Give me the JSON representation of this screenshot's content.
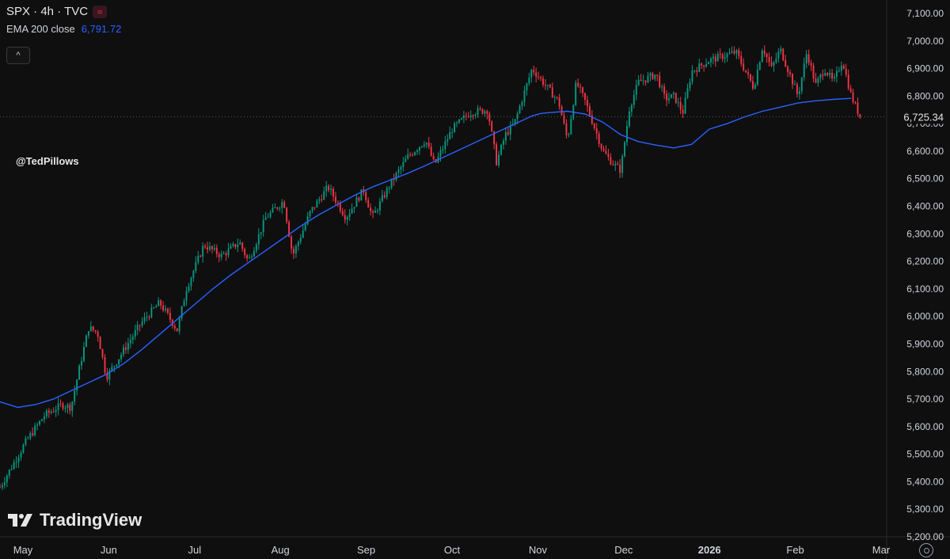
{
  "header": {
    "symbol_line": "SPX · 4h · TVC",
    "badge_symbol": "≈",
    "indicator_label": "EMA 200 close",
    "indicator_value": "6,791.72",
    "collapse_symbol": "^"
  },
  "watermark_handle": "@TedPillows",
  "brand": {
    "name": "TradingView",
    "logo_icon": "tradingview-logo-icon"
  },
  "colors": {
    "up": "#089981",
    "down": "#f23645",
    "ema": "#2962ff",
    "background": "#0f0f0f"
  },
  "chart_data": {
    "type": "candlestick",
    "symbol": "SPX",
    "timeframe": "4h",
    "source": "TVC",
    "y_axis": {
      "ticks": [
        "7,100.00",
        "7,000.00",
        "6,900.00",
        "6,800.00",
        "6,700.00",
        "6,600.00",
        "6,500.00",
        "6,400.00",
        "6,300.00",
        "6,200.00",
        "6,100.00",
        "6,000.00",
        "5,900.00",
        "5,800.00",
        "5,700.00",
        "5,600.00",
        "5,500.00",
        "5,400.00",
        "5,300.00",
        "5,200.00"
      ],
      "range": [
        5200,
        7100
      ]
    },
    "x_axis": {
      "ticks": [
        "May",
        "Jun",
        "Jul",
        "Aug",
        "Sep",
        "Oct",
        "Nov",
        "Dec",
        "2026",
        "Feb",
        "Mar"
      ]
    },
    "current_price": 6725.34,
    "current_price_label": "6,725.34",
    "price_path": [
      [
        0,
        5380
      ],
      [
        3,
        5550
      ],
      [
        5,
        5640
      ],
      [
        7,
        5680
      ],
      [
        8,
        5670
      ],
      [
        9,
        5820
      ],
      [
        10,
        5960
      ],
      [
        11,
        5940
      ],
      [
        12,
        5780
      ],
      [
        14,
        5880
      ],
      [
        16,
        5980
      ],
      [
        18,
        6050
      ],
      [
        20,
        5950
      ],
      [
        21,
        6100
      ],
      [
        23,
        6260
      ],
      [
        25,
        6220
      ],
      [
        27,
        6270
      ],
      [
        28,
        6200
      ],
      [
        30,
        6360
      ],
      [
        32,
        6420
      ],
      [
        33,
        6220
      ],
      [
        35,
        6380
      ],
      [
        37,
        6470
      ],
      [
        39,
        6360
      ],
      [
        41,
        6460
      ],
      [
        42,
        6360
      ],
      [
        44,
        6480
      ],
      [
        46,
        6580
      ],
      [
        48,
        6640
      ],
      [
        49,
        6550
      ],
      [
        51,
        6680
      ],
      [
        53,
        6740
      ],
      [
        55,
        6750
      ],
      [
        56,
        6560
      ],
      [
        57,
        6660
      ],
      [
        58,
        6700
      ],
      [
        60,
        6900
      ],
      [
        61,
        6860
      ],
      [
        63,
        6780
      ],
      [
        64,
        6640
      ],
      [
        65,
        6850
      ],
      [
        66,
        6780
      ],
      [
        68,
        6600
      ],
      [
        69,
        6560
      ],
      [
        70,
        6530
      ],
      [
        71,
        6760
      ],
      [
        72,
        6850
      ],
      [
        74,
        6880
      ],
      [
        75,
        6790
      ],
      [
        76,
        6800
      ],
      [
        77,
        6740
      ],
      [
        78,
        6890
      ],
      [
        80,
        6930
      ],
      [
        82,
        6950
      ],
      [
        83,
        6960
      ],
      [
        85,
        6830
      ],
      [
        86,
        6980
      ],
      [
        87,
        6900
      ],
      [
        88,
        6970
      ],
      [
        90,
        6800
      ],
      [
        91,
        6960
      ],
      [
        92,
        6840
      ],
      [
        93,
        6900
      ],
      [
        94,
        6850
      ],
      [
        95,
        6930
      ],
      [
        96,
        6800
      ],
      [
        97,
        6725
      ]
    ],
    "ema200": [
      [
        0,
        5690
      ],
      [
        2,
        5670
      ],
      [
        4,
        5680
      ],
      [
        6,
        5700
      ],
      [
        8,
        5730
      ],
      [
        10,
        5760
      ],
      [
        12,
        5790
      ],
      [
        14,
        5830
      ],
      [
        16,
        5880
      ],
      [
        18,
        5935
      ],
      [
        20,
        5990
      ],
      [
        22,
        6045
      ],
      [
        24,
        6100
      ],
      [
        26,
        6150
      ],
      [
        28,
        6195
      ],
      [
        30,
        6240
      ],
      [
        32,
        6285
      ],
      [
        34,
        6330
      ],
      [
        36,
        6370
      ],
      [
        38,
        6405
      ],
      [
        40,
        6440
      ],
      [
        42,
        6470
      ],
      [
        44,
        6495
      ],
      [
        46,
        6520
      ],
      [
        48,
        6548
      ],
      [
        50,
        6578
      ],
      [
        52,
        6608
      ],
      [
        54,
        6638
      ],
      [
        56,
        6668
      ],
      [
        58,
        6698
      ],
      [
        60,
        6728
      ],
      [
        61,
        6737
      ],
      [
        62,
        6740
      ],
      [
        64,
        6745
      ],
      [
        66,
        6735
      ],
      [
        68,
        6705
      ],
      [
        70,
        6660
      ],
      [
        72,
        6635
      ],
      [
        74,
        6622
      ],
      [
        76,
        6612
      ],
      [
        78,
        6625
      ],
      [
        80,
        6680
      ],
      [
        82,
        6700
      ],
      [
        84,
        6725
      ],
      [
        86,
        6745
      ],
      [
        88,
        6760
      ],
      [
        90,
        6775
      ],
      [
        92,
        6783
      ],
      [
        94,
        6788
      ],
      [
        96,
        6791.72
      ]
    ]
  }
}
